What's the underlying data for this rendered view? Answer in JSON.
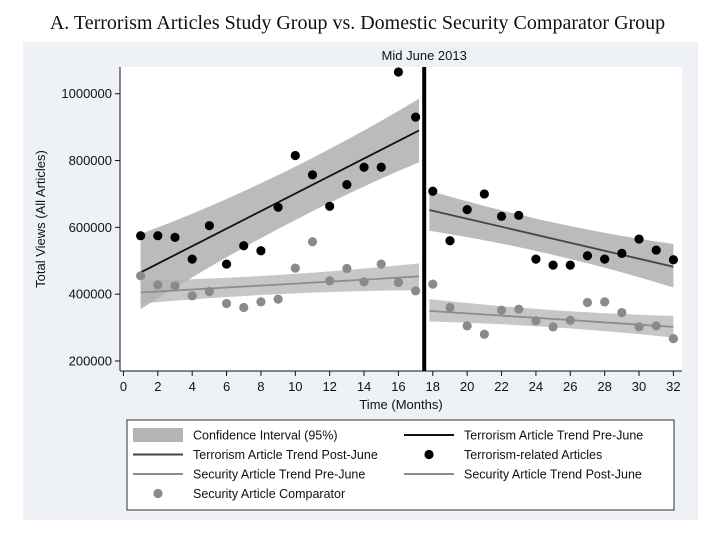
{
  "chart_data": {
    "type": "scatter",
    "title": "A. Terrorism Articles Study Group vs. Domestic Security Comparator Group",
    "xlabel": "Time (Months)",
    "ylabel": "Total Views (All Articles)",
    "xlim": [
      -0.2,
      32.5
    ],
    "ylim": [
      170000,
      1080000
    ],
    "x_ticks": [
      0,
      2,
      4,
      6,
      8,
      10,
      12,
      14,
      16,
      18,
      20,
      22,
      24,
      26,
      28,
      30,
      32
    ],
    "y_ticks": [
      200000,
      400000,
      600000,
      800000,
      1000000
    ],
    "grid": false,
    "cutoff": {
      "x": 17.5,
      "label": "Mid June 2013"
    },
    "colors": {
      "terror_points": "#000000",
      "security_points": "#8a8a8a",
      "terror_line": "#111111",
      "terror_post_line": "#444444",
      "security_line": "#8c8c8c",
      "ci_band": "#b4b4b4",
      "cutoff": "#000000",
      "plot_bg": "#ffffff",
      "figure_bg": "#eef1f6"
    },
    "series": [
      {
        "name": "Terrorism-related Articles",
        "kind": "points",
        "x": [
          1,
          2,
          3,
          4,
          5,
          6,
          7,
          8,
          9,
          10,
          11,
          12,
          13,
          14,
          15,
          16,
          17,
          18,
          19,
          20,
          21,
          22,
          23,
          24,
          25,
          26,
          27,
          28,
          29,
          30,
          31,
          32
        ],
        "y": [
          575000,
          575000,
          570000,
          505000,
          605000,
          490000,
          545000,
          530000,
          660000,
          815000,
          757000,
          663000,
          728000,
          780000,
          780000,
          1065000,
          930000,
          708000,
          560000,
          653000,
          700000,
          633000,
          636000,
          505000,
          487000,
          487000,
          515000,
          505000,
          522000,
          565000,
          532000,
          503000
        ]
      },
      {
        "name": "Security Article Comparator",
        "kind": "points",
        "x": [
          1,
          2,
          3,
          4,
          5,
          6,
          7,
          8,
          9,
          10,
          11,
          12,
          13,
          14,
          15,
          16,
          17,
          18,
          19,
          20,
          21,
          22,
          23,
          24,
          25,
          26,
          27,
          28,
          29,
          30,
          31,
          32
        ],
        "y": [
          455000,
          428000,
          425000,
          395000,
          408000,
          372000,
          360000,
          377000,
          385000,
          478000,
          557000,
          440000,
          477000,
          437000,
          490000,
          435000,
          410000,
          430000,
          360000,
          305000,
          280000,
          352000,
          355000,
          320000,
          302000,
          322000,
          375000,
          377000,
          345000,
          302000,
          305000,
          267000
        ]
      },
      {
        "name": "Terrorism Article Trend Pre-June",
        "kind": "trend",
        "x": [
          1,
          17.2
        ],
        "y": [
          465000,
          890000
        ],
        "ci_low": [
          355000,
          795000
        ],
        "ci_high": [
          580000,
          985000
        ]
      },
      {
        "name": "Terrorism Article Trend Post-June",
        "kind": "trend",
        "x": [
          17.8,
          32
        ],
        "y": [
          652000,
          482000
        ],
        "ci_low": [
          590000,
          420000
        ],
        "ci_high": [
          710000,
          550000
        ]
      },
      {
        "name": "Security Article Trend Pre-June",
        "kind": "trend",
        "x": [
          1,
          17.2
        ],
        "y": [
          405000,
          453000
        ],
        "ci_low": [
          372000,
          412000
        ],
        "ci_high": [
          440000,
          492000
        ]
      },
      {
        "name": "Security Article Trend Post-June",
        "kind": "trend",
        "x": [
          17.8,
          32
        ],
        "y": [
          350000,
          302000
        ],
        "ci_low": [
          318000,
          270000
        ],
        "ci_high": [
          385000,
          335000
        ]
      }
    ],
    "legend": {
      "position": "bottom",
      "columns": 2,
      "entries": [
        {
          "label": "Confidence Interval (95%)",
          "symbol": "band"
        },
        {
          "label": "Terrorism Article Trend Pre-June",
          "symbol": "line-black"
        },
        {
          "label": "Terrorism Article Trend Post-June",
          "symbol": "line-dark"
        },
        {
          "label": "Terrorism-related Articles",
          "symbol": "dot-black"
        },
        {
          "label": "Security Article Trend Pre-June",
          "symbol": "line-grey"
        },
        {
          "label": "Security Article Trend Post-June",
          "symbol": "line-grey"
        },
        {
          "label": "Security Article Comparator",
          "symbol": "dot-grey"
        }
      ]
    }
  }
}
